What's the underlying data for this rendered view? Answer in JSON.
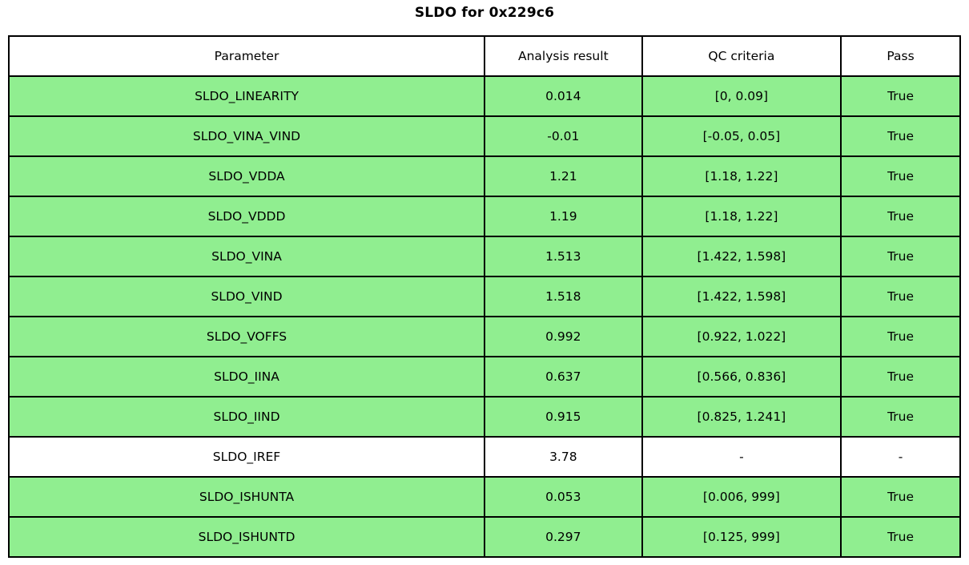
{
  "title": "SLDO for 0x229c6",
  "colors": {
    "pass_green": "#90EE90",
    "row_neutral": "#ffffff",
    "border": "#000000"
  },
  "chart_data": {
    "type": "table",
    "title": "SLDO for 0x229c6",
    "columns": [
      "Parameter",
      "Analysis result",
      "QC criteria",
      "Pass"
    ],
    "rows": [
      {
        "parameter": "SLDO_LINEARITY",
        "analysis_result": "0.014",
        "qc_criteria": "[0, 0.09]",
        "pass": "True",
        "highlight_green": true
      },
      {
        "parameter": "SLDO_VINA_VIND",
        "analysis_result": "-0.01",
        "qc_criteria": "[-0.05, 0.05]",
        "pass": "True",
        "highlight_green": true
      },
      {
        "parameter": "SLDO_VDDA",
        "analysis_result": "1.21",
        "qc_criteria": "[1.18, 1.22]",
        "pass": "True",
        "highlight_green": true
      },
      {
        "parameter": "SLDO_VDDD",
        "analysis_result": "1.19",
        "qc_criteria": "[1.18, 1.22]",
        "pass": "True",
        "highlight_green": true
      },
      {
        "parameter": "SLDO_VINA",
        "analysis_result": "1.513",
        "qc_criteria": "[1.422, 1.598]",
        "pass": "True",
        "highlight_green": true
      },
      {
        "parameter": "SLDO_VIND",
        "analysis_result": "1.518",
        "qc_criteria": "[1.422, 1.598]",
        "pass": "True",
        "highlight_green": true
      },
      {
        "parameter": "SLDO_VOFFS",
        "analysis_result": "0.992",
        "qc_criteria": "[0.922, 1.022]",
        "pass": "True",
        "highlight_green": true
      },
      {
        "parameter": "SLDO_IINA",
        "analysis_result": "0.637",
        "qc_criteria": "[0.566, 0.836]",
        "pass": "True",
        "highlight_green": true
      },
      {
        "parameter": "SLDO_IIND",
        "analysis_result": "0.915",
        "qc_criteria": "[0.825, 1.241]",
        "pass": "True",
        "highlight_green": true
      },
      {
        "parameter": "SLDO_IREF",
        "analysis_result": "3.78",
        "qc_criteria": "-",
        "pass": "-",
        "highlight_green": false
      },
      {
        "parameter": "SLDO_ISHUNTA",
        "analysis_result": "0.053",
        "qc_criteria": "[0.006, 999]",
        "pass": "True",
        "highlight_green": true
      },
      {
        "parameter": "SLDO_ISHUNTD",
        "analysis_result": "0.297",
        "qc_criteria": "[0.125, 999]",
        "pass": "True",
        "highlight_green": true
      }
    ]
  }
}
